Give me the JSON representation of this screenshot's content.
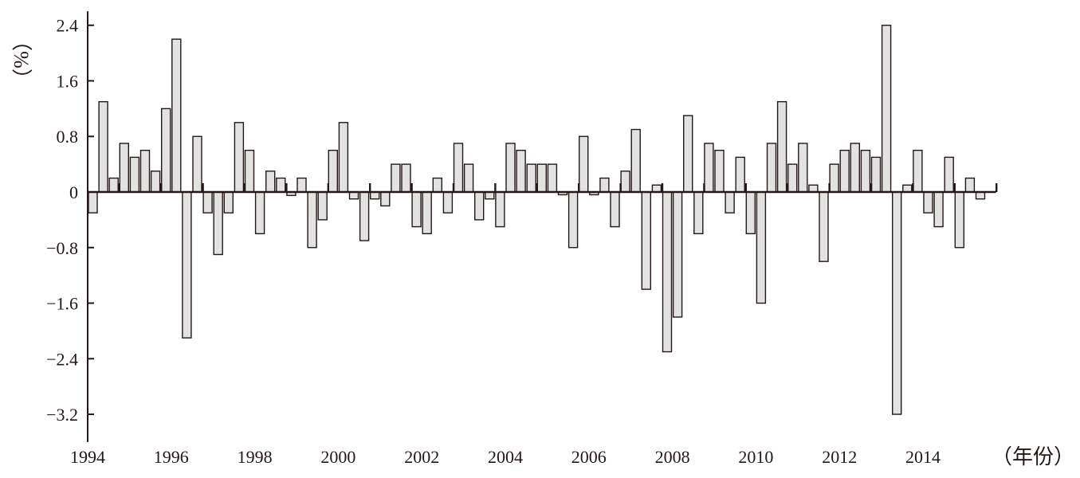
{
  "chart_data": {
    "type": "bar",
    "title": "",
    "xlabel": "（年份）",
    "ylabel": "（%）",
    "ylim": [
      -3.6,
      2.6
    ],
    "xlim": [
      1994,
      2015.75
    ],
    "yticks": [
      2.4,
      1.6,
      0.8,
      0,
      -0.8,
      -1.6,
      -2.4,
      -3.2
    ],
    "ytick_labels": [
      "2.4",
      "1.6",
      "0.8",
      "0",
      "−0.8",
      "−1.6",
      "−2.4",
      "−3.2"
    ],
    "xticks": [
      1994,
      1996,
      1998,
      2000,
      2002,
      2004,
      2006,
      2008,
      2010,
      2012,
      2014
    ],
    "xtick_labels": [
      "1994",
      "1996",
      "1998",
      "2000",
      "2002",
      "2004",
      "2006",
      "2008",
      "2010",
      "2012",
      "2014"
    ],
    "grid": false,
    "bar_color": "#e2e2e2",
    "edge_color": "#231815",
    "series": [
      {
        "name": "",
        "x": [
          1994.0,
          1994.25,
          1994.5,
          1994.75,
          1995.0,
          1995.25,
          1995.5,
          1995.75,
          1996.0,
          1996.25,
          1996.5,
          1996.75,
          1997.0,
          1997.25,
          1997.5,
          1997.75,
          1998.0,
          1998.25,
          1998.5,
          1998.75,
          1999.0,
          1999.25,
          1999.5,
          1999.75,
          2000.0,
          2000.25,
          2000.5,
          2000.75,
          2001.0,
          2001.25,
          2001.5,
          2001.75,
          2002.0,
          2002.25,
          2002.5,
          2002.75,
          2003.0,
          2003.25,
          2003.5,
          2003.75,
          2004.0,
          2004.25,
          2004.5,
          2004.75,
          2005.0,
          2005.25,
          2005.5,
          2005.75,
          2006.0,
          2006.25,
          2006.5,
          2006.75,
          2007.0,
          2007.25,
          2007.5,
          2007.75,
          2008.0,
          2008.25,
          2008.5,
          2008.75,
          2009.0,
          2009.25,
          2009.5,
          2009.75,
          2010.0,
          2010.25,
          2010.5,
          2010.75,
          2011.0,
          2011.25,
          2011.5,
          2011.75,
          2012.0,
          2012.25,
          2012.5,
          2012.75,
          2013.0,
          2013.25,
          2013.5,
          2013.75,
          2014.0,
          2014.25,
          2014.5,
          2014.75,
          2015.0,
          2015.25
        ],
        "values": [
          -0.3,
          1.3,
          0.2,
          0.7,
          0.5,
          0.6,
          0.3,
          1.2,
          2.2,
          -2.1,
          0.8,
          -0.3,
          -0.9,
          -0.3,
          1.0,
          0.6,
          -0.6,
          0.3,
          0.2,
          -0.05,
          0.2,
          -0.8,
          -0.4,
          0.6,
          1.0,
          -0.1,
          -0.7,
          -0.1,
          -0.2,
          0.4,
          0.4,
          -0.5,
          -0.6,
          0.2,
          -0.3,
          0.7,
          0.4,
          -0.4,
          -0.1,
          -0.5,
          0.7,
          0.6,
          0.4,
          0.4,
          0.4,
          -0.04,
          -0.8,
          0.8,
          -0.04,
          0.2,
          -0.5,
          0.3,
          0.9,
          -1.4,
          0.1,
          -2.3,
          -1.8,
          1.1,
          -0.6,
          0.7,
          0.6,
          -0.3,
          0.5,
          -0.6,
          -1.6,
          0.7,
          1.3,
          0.4,
          0.7,
          0.1,
          -1.0,
          0.4,
          0.6,
          0.7,
          0.6,
          0.5,
          2.4,
          -3.2,
          0.1,
          0.6,
          -0.3,
          -0.5,
          0.5,
          -0.8,
          0.2,
          -0.1
        ]
      }
    ]
  }
}
